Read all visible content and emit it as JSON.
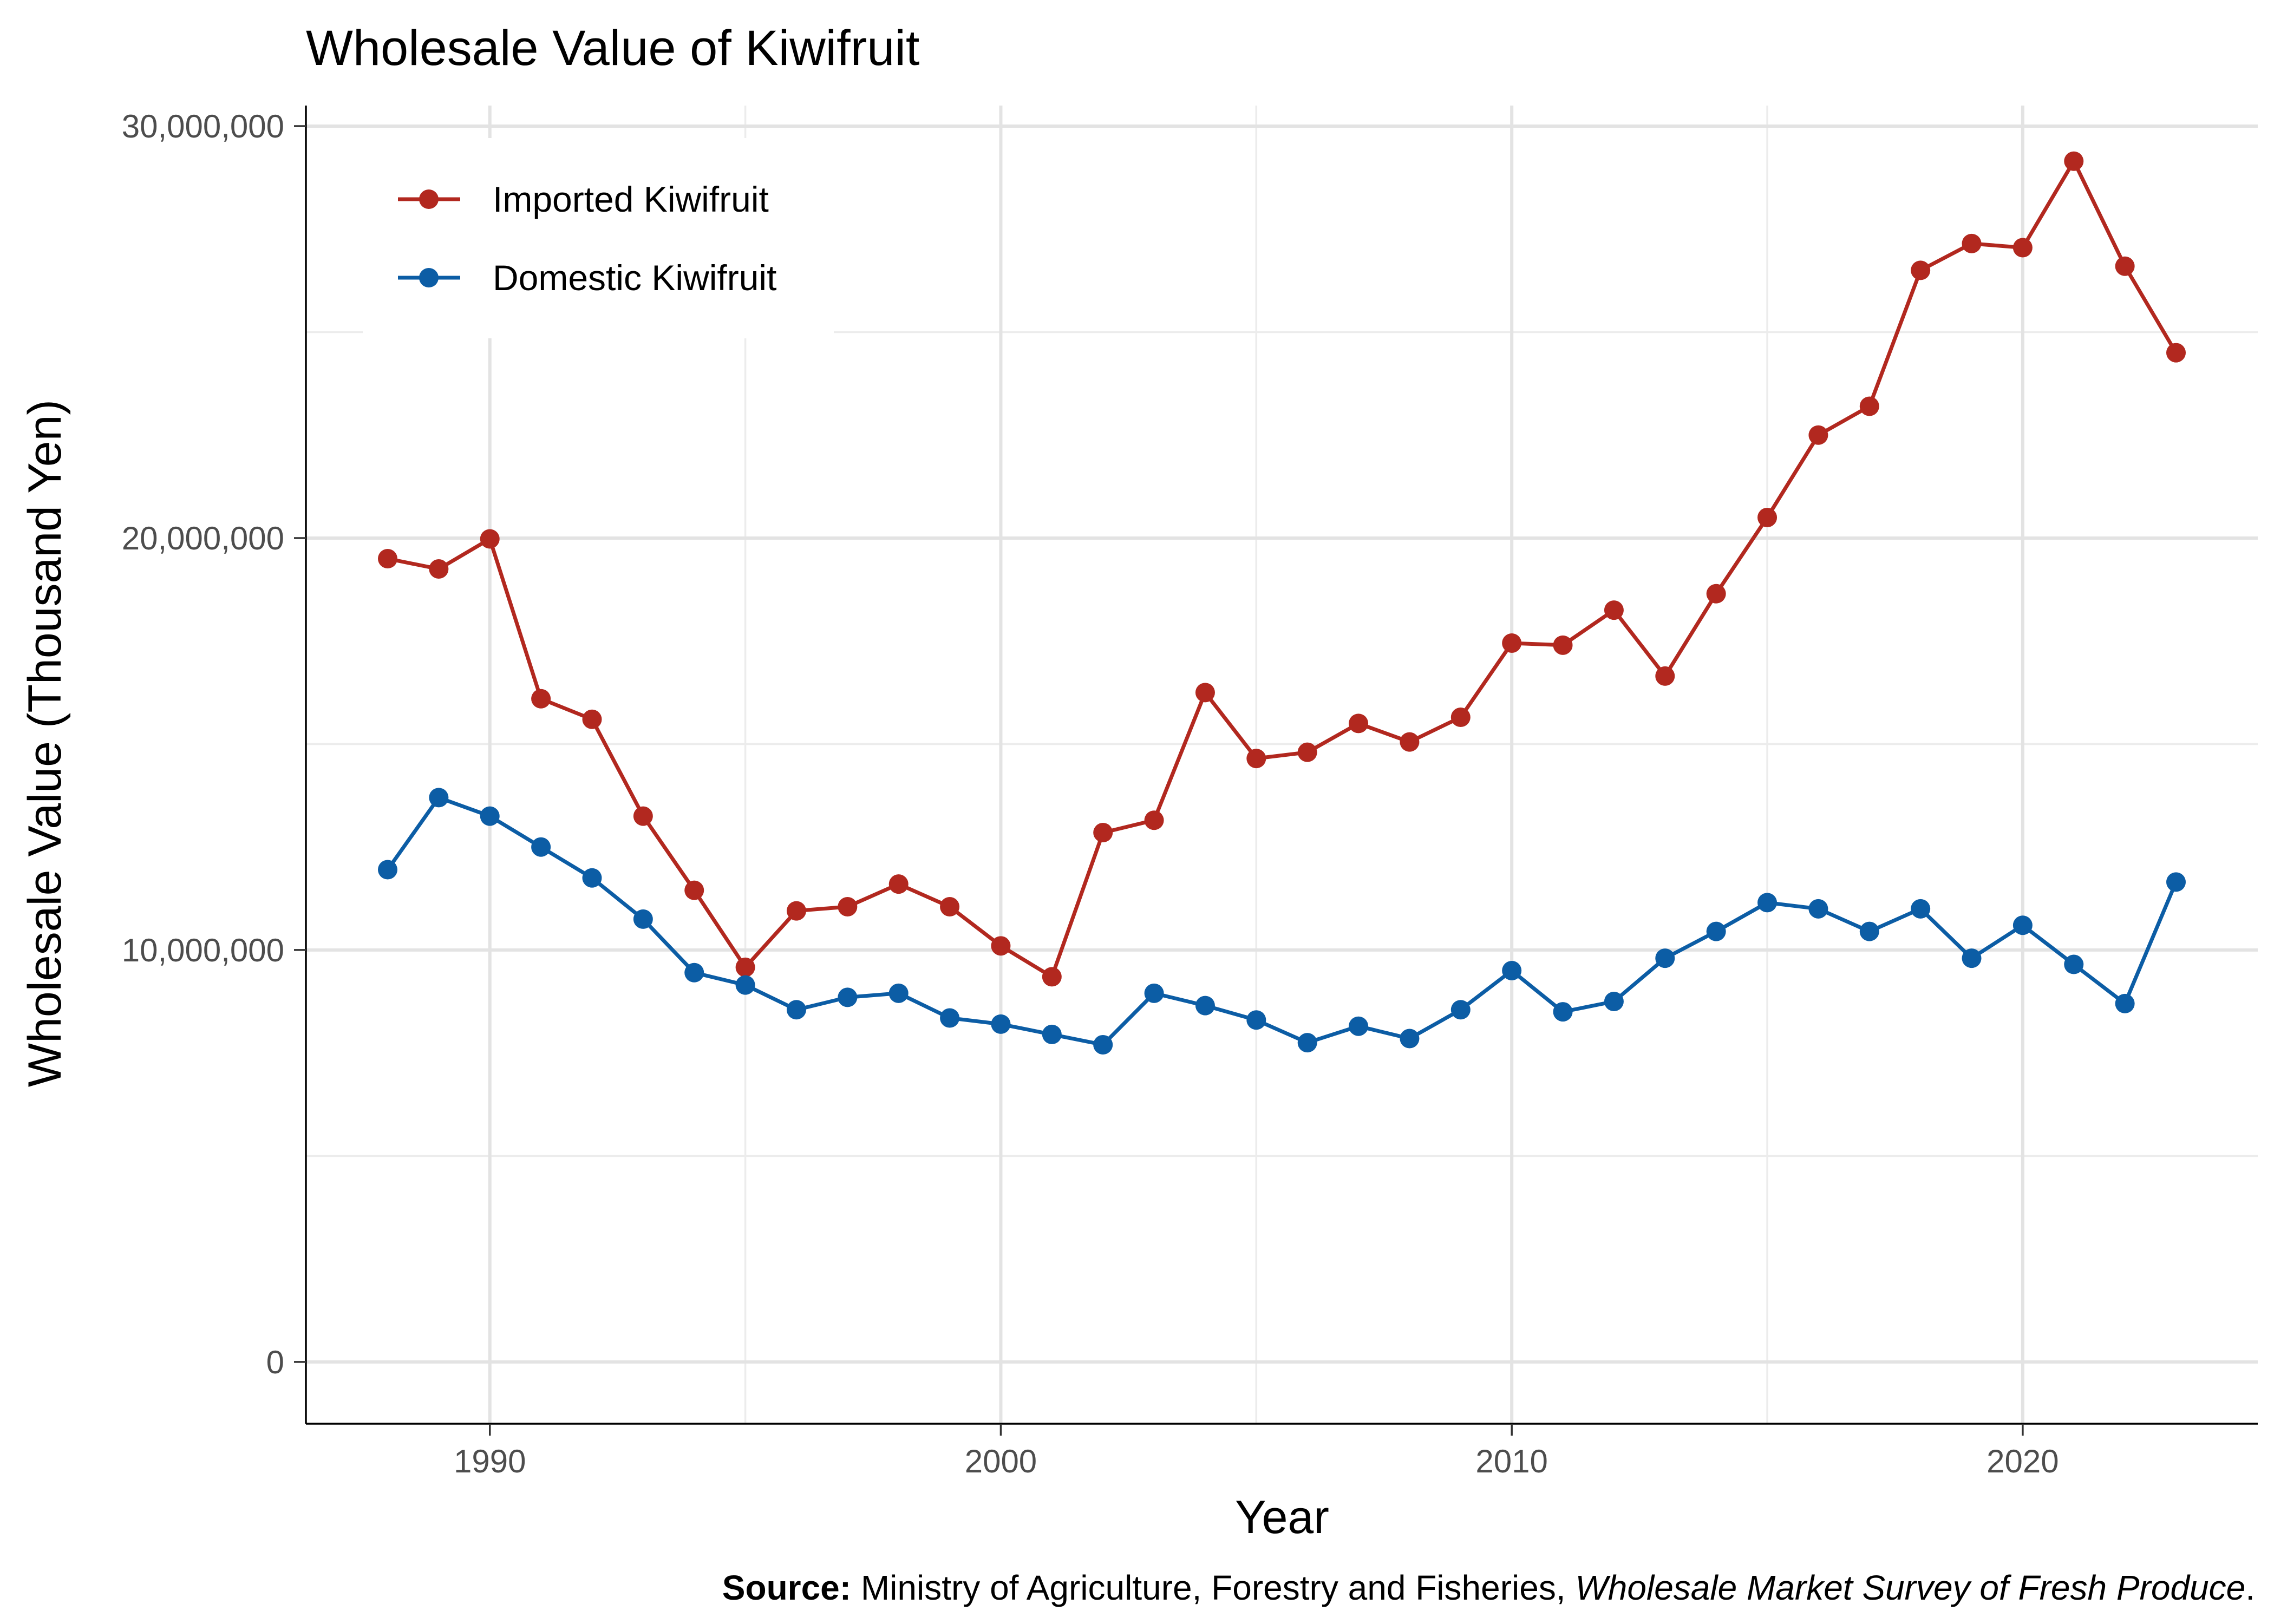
{
  "chart_data": {
    "type": "line",
    "title": "Wholesale Value of Kiwifruit",
    "xlabel": "Year",
    "ylabel": "Wholesale Value (Thousand Yen)",
    "xlim": [
      1986.4,
      2024.6
    ],
    "ylim": [
      -1500000,
      30500000
    ],
    "x_ticks": [
      1990,
      2000,
      2010,
      2020
    ],
    "x_tick_labels": [
      "1990",
      "2000",
      "2010",
      "2020"
    ],
    "x_minor_ticks": [
      1995,
      2005,
      2015
    ],
    "y_ticks": [
      0,
      10000000,
      20000000,
      30000000
    ],
    "y_tick_labels": [
      "0",
      "10,000,000",
      "20,000,000",
      "30,000,000"
    ],
    "y_minor_ticks": [
      5000000,
      15000000,
      25000000
    ],
    "grid": true,
    "legend_position": "top-left",
    "x": [
      1988,
      1989,
      1990,
      1991,
      1992,
      1993,
      1994,
      1995,
      1996,
      1997,
      1998,
      1999,
      2000,
      2001,
      2002,
      2003,
      2004,
      2005,
      2006,
      2007,
      2008,
      2009,
      2010,
      2011,
      2012,
      2013,
      2014,
      2015,
      2016,
      2017,
      2018,
      2019,
      2020,
      2021,
      2022,
      2023
    ],
    "series": [
      {
        "name": "Imported Kiwifruit",
        "color": "#B2281F",
        "values": [
          19500000,
          19250000,
          19980000,
          16100000,
          15600000,
          13250000,
          11450000,
          9580000,
          10950000,
          11050000,
          11600000,
          11050000,
          10100000,
          9350000,
          12850000,
          13150000,
          16250000,
          14650000,
          14800000,
          15500000,
          15050000,
          15650000,
          17450000,
          17400000,
          18250000,
          16650000,
          18650000,
          20500000,
          22500000,
          23200000,
          26500000,
          27150000,
          27050000,
          29150000,
          26600000,
          24500000
        ]
      },
      {
        "name": "Domestic Kiwifruit",
        "color": "#0C5DA5",
        "values": [
          11950000,
          13700000,
          13250000,
          12500000,
          11750000,
          10750000,
          9450000,
          9150000,
          8550000,
          8850000,
          8950000,
          8350000,
          8200000,
          7950000,
          7700000,
          8950000,
          8650000,
          8300000,
          7750000,
          8150000,
          7850000,
          8550000,
          9500000,
          8500000,
          8750000,
          9800000,
          10450000,
          11150000,
          11000000,
          10450000,
          11000000,
          9800000,
          10600000,
          9650000,
          8700000,
          11650000
        ]
      }
    ]
  },
  "source": {
    "bold": "Source:",
    "plain": " Ministry of Agriculture, Forestry and Fisheries, ",
    "italic": "Wholesale Market Survey of Fresh Produce",
    "end": "."
  }
}
